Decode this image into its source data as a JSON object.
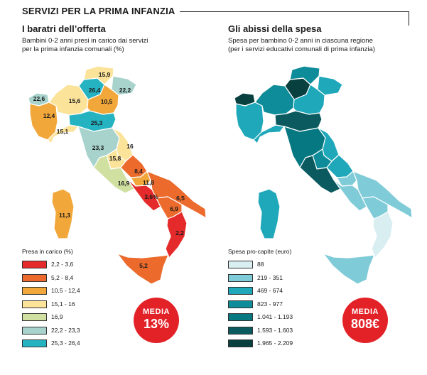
{
  "header": {
    "title": "SERVIZI PER LA PRIMA INFANZIA"
  },
  "left_panel": {
    "title": "I baratri dell’offerta",
    "subtitle_line1": "Bambini 0-2 anni presi in carico dai servizi",
    "subtitle_line2": "per la prima infanzia comunali (%)",
    "legend_title": "Presa in carico (%)",
    "legend": [
      {
        "label": "2,2 - 3,6",
        "color": "#e52a2b"
      },
      {
        "label": "5,2 - 8,4",
        "color": "#eb6a2c"
      },
      {
        "label": "10,5 - 12,4",
        "color": "#f2a73a"
      },
      {
        "label": "15,1 - 16",
        "color": "#fbe39a"
      },
      {
        "label": "16,9",
        "color": "#cfe0a0"
      },
      {
        "label": "22,2 - 23,3",
        "color": "#a7d3cc"
      },
      {
        "label": "25,3 - 26,4",
        "color": "#25b3c2"
      }
    ],
    "region_values": [
      {
        "region": "Valle d'Aosta",
        "value": "22,6",
        "color": "#a7d3cc"
      },
      {
        "region": "Piemonte",
        "value": "12,4",
        "color": "#f2a73a"
      },
      {
        "region": "Liguria",
        "value": "15,1",
        "color": "#fbe39a"
      },
      {
        "region": "Lombardia",
        "value": "15,6",
        "color": "#fbe39a"
      },
      {
        "region": "Trentino-Alto Adige",
        "value": "26,4",
        "color": "#25b3c2"
      },
      {
        "region": "Alto Adige",
        "value": "15,9",
        "color": "#fbe39a"
      },
      {
        "region": "Friuli-Venezia Giulia",
        "value": "22,2",
        "color": "#a7d3cc"
      },
      {
        "region": "Veneto",
        "value": "10,5",
        "color": "#f2a73a"
      },
      {
        "region": "Emilia-Romagna",
        "value": "25,3",
        "color": "#25b3c2"
      },
      {
        "region": "Toscana",
        "value": "23,3",
        "color": "#a7d3cc"
      },
      {
        "region": "Marche",
        "value": "16",
        "color": "#fbe39a"
      },
      {
        "region": "Umbria",
        "value": "15,8",
        "color": "#fbe39a"
      },
      {
        "region": "Lazio",
        "value": "16,9",
        "color": "#cfe0a0"
      },
      {
        "region": "Abruzzo",
        "value": "8,4",
        "color": "#eb6a2c"
      },
      {
        "region": "Molise",
        "value": "11,8",
        "color": "#f2a73a"
      },
      {
        "region": "Campania",
        "value": "3,6%",
        "color": "#e52a2b"
      },
      {
        "region": "Puglia",
        "value": "6,5",
        "color": "#eb6a2c"
      },
      {
        "region": "Basilicata",
        "value": "6,9",
        "color": "#eb6a2c"
      },
      {
        "region": "Calabria",
        "value": "2,2",
        "color": "#e52a2b"
      },
      {
        "region": "Sicilia",
        "value": "5,2",
        "color": "#eb6a2c"
      },
      {
        "region": "Sardegna",
        "value": "11,3",
        "color": "#f2a73a"
      }
    ],
    "badge": {
      "line1": "MEDIA",
      "line2": "13%"
    }
  },
  "right_panel": {
    "title": "Gli abissi della spesa",
    "subtitle_line1": "Spesa per bambino 0-2 anni in ciascuna regione",
    "subtitle_line2": "(per i servizi educativi comunali di prima infanzia)",
    "legend_title": "Spesa pro-capite (euro)",
    "legend": [
      {
        "label": "88",
        "color": "#d9eef1"
      },
      {
        "label": "219 - 351",
        "color": "#7fcbd8"
      },
      {
        "label": "469 - 674",
        "color": "#1fa8b9"
      },
      {
        "label": "823 - 977",
        "color": "#0e8c99"
      },
      {
        "label": "1.041 - 1.193",
        "color": "#067882"
      },
      {
        "label": "1.593 - 1.603",
        "color": "#0a5a60"
      },
      {
        "label": "1.965 - 2.209",
        "color": "#083f3f"
      }
    ],
    "badge": {
      "line1": "MEDIA",
      "line2": "808€"
    }
  },
  "colors": {
    "badge": "#e32228",
    "border": "#ffffff"
  }
}
